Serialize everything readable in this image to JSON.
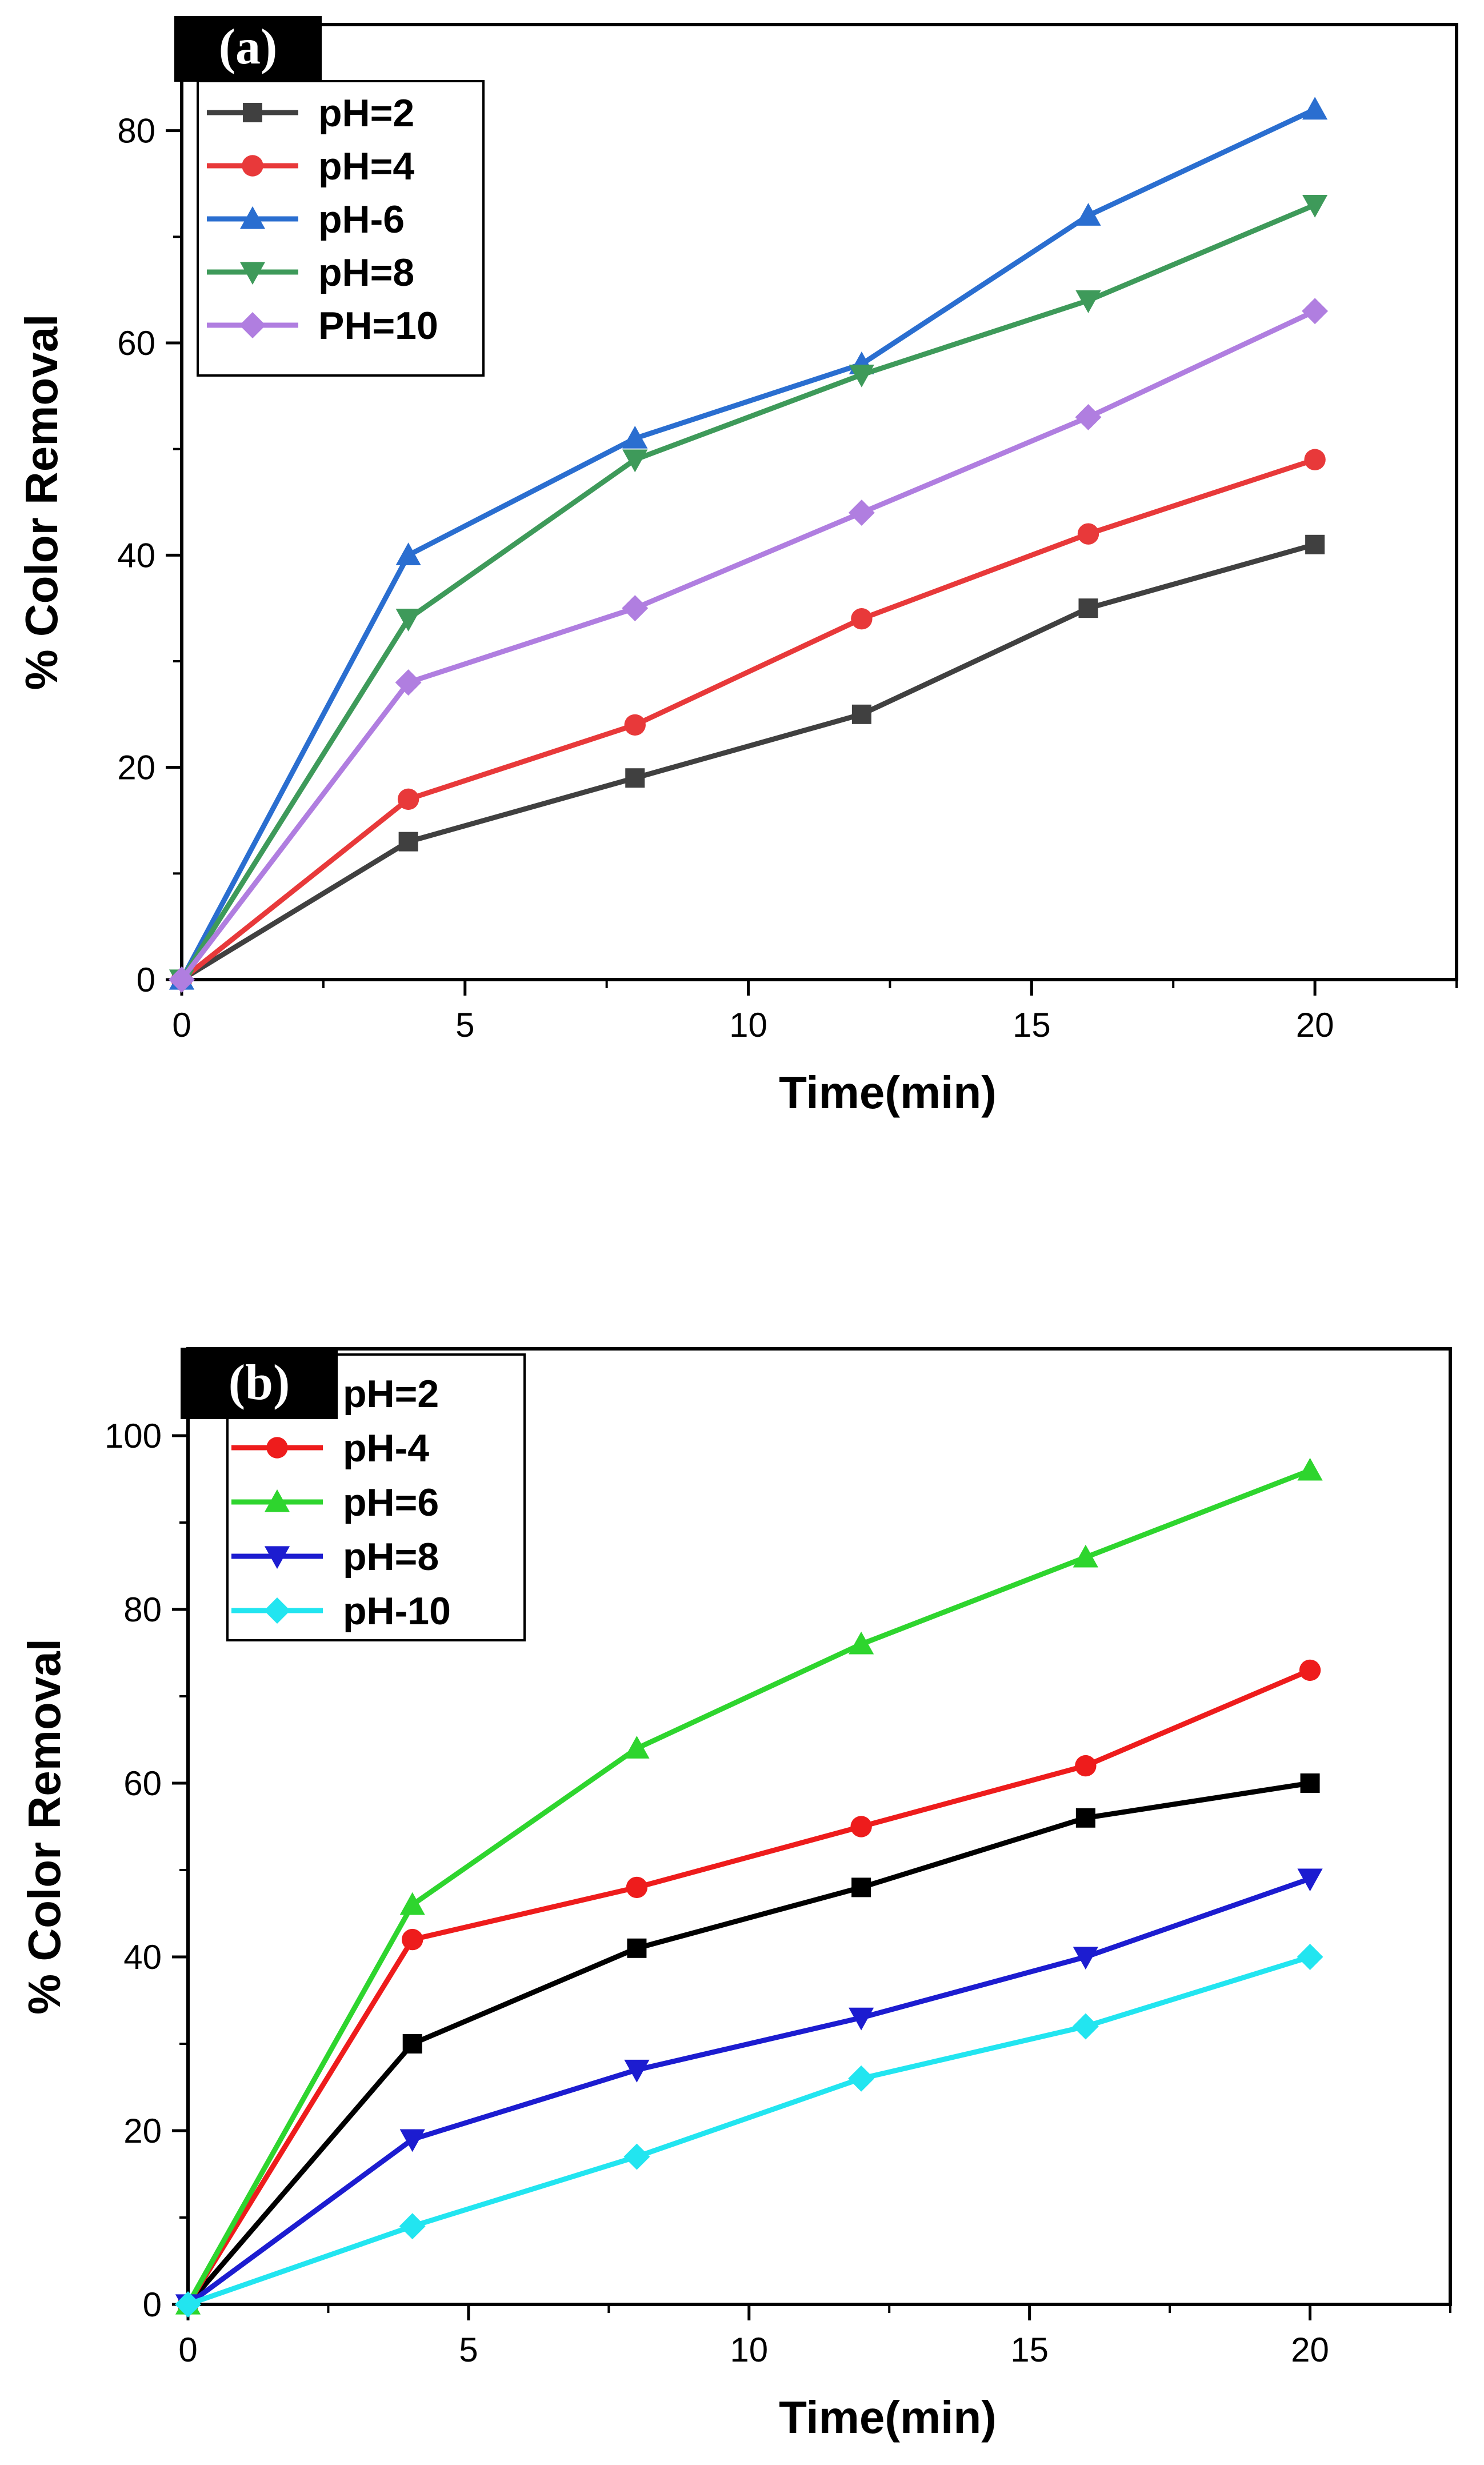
{
  "chart_data": [
    {
      "type": "line",
      "panel_label": "(a)",
      "xlabel": "Time(min)",
      "ylabel": "% Color Removal",
      "xlim": [
        0,
        22.5
      ],
      "ylim": [
        0,
        90
      ],
      "xticks": [
        "0",
        "5",
        "10",
        "15",
        "20"
      ],
      "yticks": [
        "0",
        "20",
        "40",
        "60",
        "80"
      ],
      "x": [
        0,
        4,
        8,
        12,
        16,
        20
      ],
      "legend_position": "top-left",
      "series": [
        {
          "name": "pH=2",
          "values": [
            0,
            13,
            19,
            25,
            35,
            41
          ],
          "color": "#404040",
          "marker": "square"
        },
        {
          "name": "pH=4",
          "values": [
            0,
            17,
            24,
            34,
            42,
            49
          ],
          "color": "#e8393a",
          "marker": "circle"
        },
        {
          "name": "pH-6",
          "values": [
            0,
            40,
            51,
            58,
            72,
            82
          ],
          "color": "#2a6ed0",
          "marker": "triangle-up"
        },
        {
          "name": "pH=8",
          "values": [
            0,
            34,
            49,
            57,
            64,
            73
          ],
          "color": "#3e9a5a",
          "marker": "triangle-down"
        },
        {
          "name": "PH=10",
          "values": [
            0,
            28,
            35,
            44,
            53,
            63
          ],
          "color": "#b07ee0",
          "marker": "diamond"
        }
      ]
    },
    {
      "type": "line",
      "panel_label": "(b)",
      "xlabel": "Time(min)",
      "ylabel": "% Color Removal",
      "xlim": [
        0,
        22.5
      ],
      "ylim": [
        0,
        110
      ],
      "xticks": [
        "0",
        "5",
        "10",
        "15",
        "20"
      ],
      "yticks": [
        "0",
        "20",
        "40",
        "60",
        "80",
        "100"
      ],
      "x": [
        0,
        4,
        8,
        12,
        16,
        20
      ],
      "legend_position": "top-left",
      "series": [
        {
          "name": "pH=2",
          "values": [
            0,
            30,
            41,
            48,
            56,
            60
          ],
          "color": "#000000",
          "marker": "square"
        },
        {
          "name": "pH-4",
          "values": [
            0,
            42,
            48,
            55,
            62,
            73
          ],
          "color": "#ee1c1c",
          "marker": "circle"
        },
        {
          "name": "pH=6",
          "values": [
            0,
            46,
            64,
            76,
            86,
            96
          ],
          "color": "#2ed52e",
          "marker": "triangle-up"
        },
        {
          "name": "pH=8",
          "values": [
            0,
            19,
            27,
            33,
            40,
            49
          ],
          "color": "#1c1cd0",
          "marker": "triangle-down"
        },
        {
          "name": "pH-10",
          "values": [
            0,
            9,
            17,
            26,
            32,
            40
          ],
          "color": "#22e5f0",
          "marker": "diamond"
        }
      ]
    }
  ]
}
